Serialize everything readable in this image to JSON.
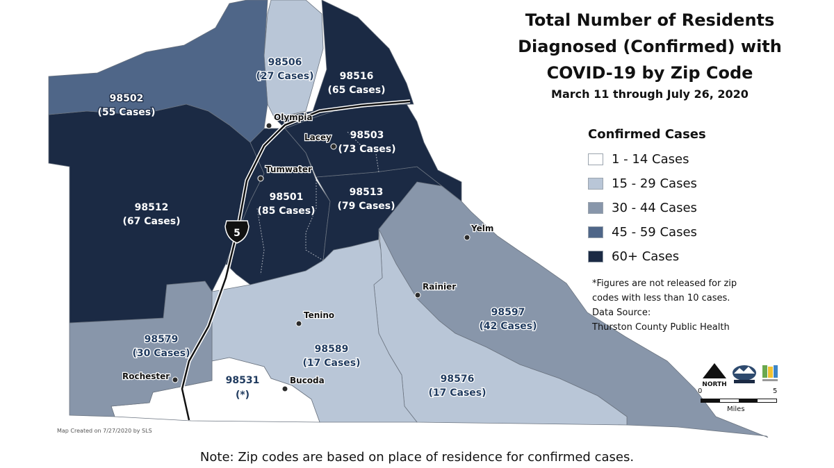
{
  "title": {
    "lines": [
      "Total Number of Residents",
      "Diagnosed (Confirmed) with",
      "COVID-19 by Zip Code"
    ],
    "date_range": "March 11 through July 26, 2020"
  },
  "legend": {
    "title": "Confirmed Cases",
    "items": [
      {
        "label": "1 - 14 Cases",
        "color": "#ffffff"
      },
      {
        "label": "15 - 29 Cases",
        "color": "#b9c6d7"
      },
      {
        "label": "30 - 44 Cases",
        "color": "#8896aa"
      },
      {
        "label": "45 - 59 Cases",
        "color": "#4f6688"
      },
      {
        "label": "60+ Cases",
        "color": "#1b2a44"
      }
    ]
  },
  "footnote": {
    "line1": "*Figures are not released for zip",
    "line2": "codes with less than 10 cases.",
    "line3": "Data Source:",
    "line4": "Thurston County Public Health"
  },
  "zips": [
    {
      "zip": "98502",
      "cases_label": "(55 Cases)",
      "cases": 55,
      "color": "#4f6688"
    },
    {
      "zip": "98506",
      "cases_label": "(27 Cases)",
      "cases": 27,
      "color": "#b9c6d7"
    },
    {
      "zip": "98516",
      "cases_label": "(65 Cases)",
      "cases": 65,
      "color": "#1b2a44"
    },
    {
      "zip": "98503",
      "cases_label": "(73 Cases)",
      "cases": 73,
      "color": "#1b2a44"
    },
    {
      "zip": "98513",
      "cases_label": "(79 Cases)",
      "cases": 79,
      "color": "#1b2a44"
    },
    {
      "zip": "98501",
      "cases_label": "(85 Cases)",
      "cases": 85,
      "color": "#1b2a44"
    },
    {
      "zip": "98512",
      "cases_label": "(67 Cases)",
      "cases": 67,
      "color": "#1b2a44"
    },
    {
      "zip": "98597",
      "cases_label": "(42 Cases)",
      "cases": 42,
      "color": "#8896aa"
    },
    {
      "zip": "98579",
      "cases_label": "(30 Cases)",
      "cases": 30,
      "color": "#8896aa"
    },
    {
      "zip": "98589",
      "cases_label": "(17 Cases)",
      "cases": 17,
      "color": "#b9c6d7"
    },
    {
      "zip": "98576",
      "cases_label": "(17 Cases)",
      "cases": 17,
      "color": "#b9c6d7"
    },
    {
      "zip": "98531",
      "cases_label": "(*)",
      "cases": null,
      "color": "#ffffff"
    }
  ],
  "cities": [
    "Olympia",
    "Lacey",
    "Tumwater",
    "Yelm",
    "Rainier",
    "Tenino",
    "Bucoda",
    "Rochester"
  ],
  "highway": "5",
  "north_label": "NORTH",
  "scale": {
    "start": "0",
    "end": "5",
    "units": "Miles"
  },
  "credit": "Map Created on 7/27/2020 by SLS",
  "note": "Note: Zip codes are based on place of residence for confirmed cases."
}
